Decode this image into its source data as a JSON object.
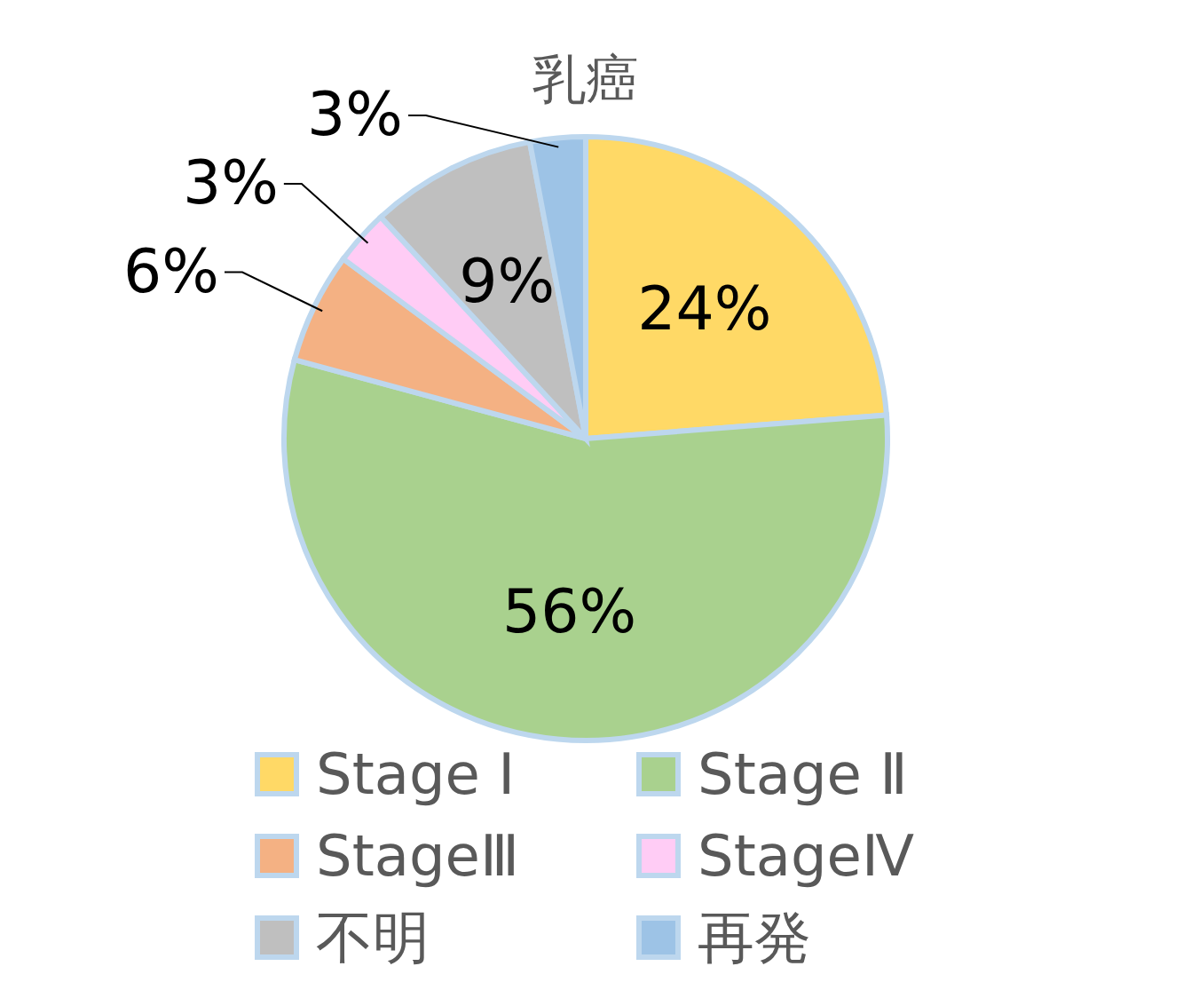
{
  "chart_data": {
    "type": "pie",
    "title": "乳癌",
    "categories": [
      "Stage Ⅰ",
      "Stage Ⅱ",
      "StageⅢ",
      "StageⅣ",
      "不明",
      "再発"
    ],
    "values": [
      24,
      56,
      6,
      3,
      9,
      3
    ],
    "colors": [
      "#ffd966",
      "#a9d18e",
      "#f4b183",
      "#ffccf5",
      "#bfbfbf",
      "#9dc3e6"
    ],
    "value_labels": [
      "24%",
      "56%",
      "6%",
      "3%",
      "9%",
      "3%"
    ],
    "legend": "bottom"
  }
}
